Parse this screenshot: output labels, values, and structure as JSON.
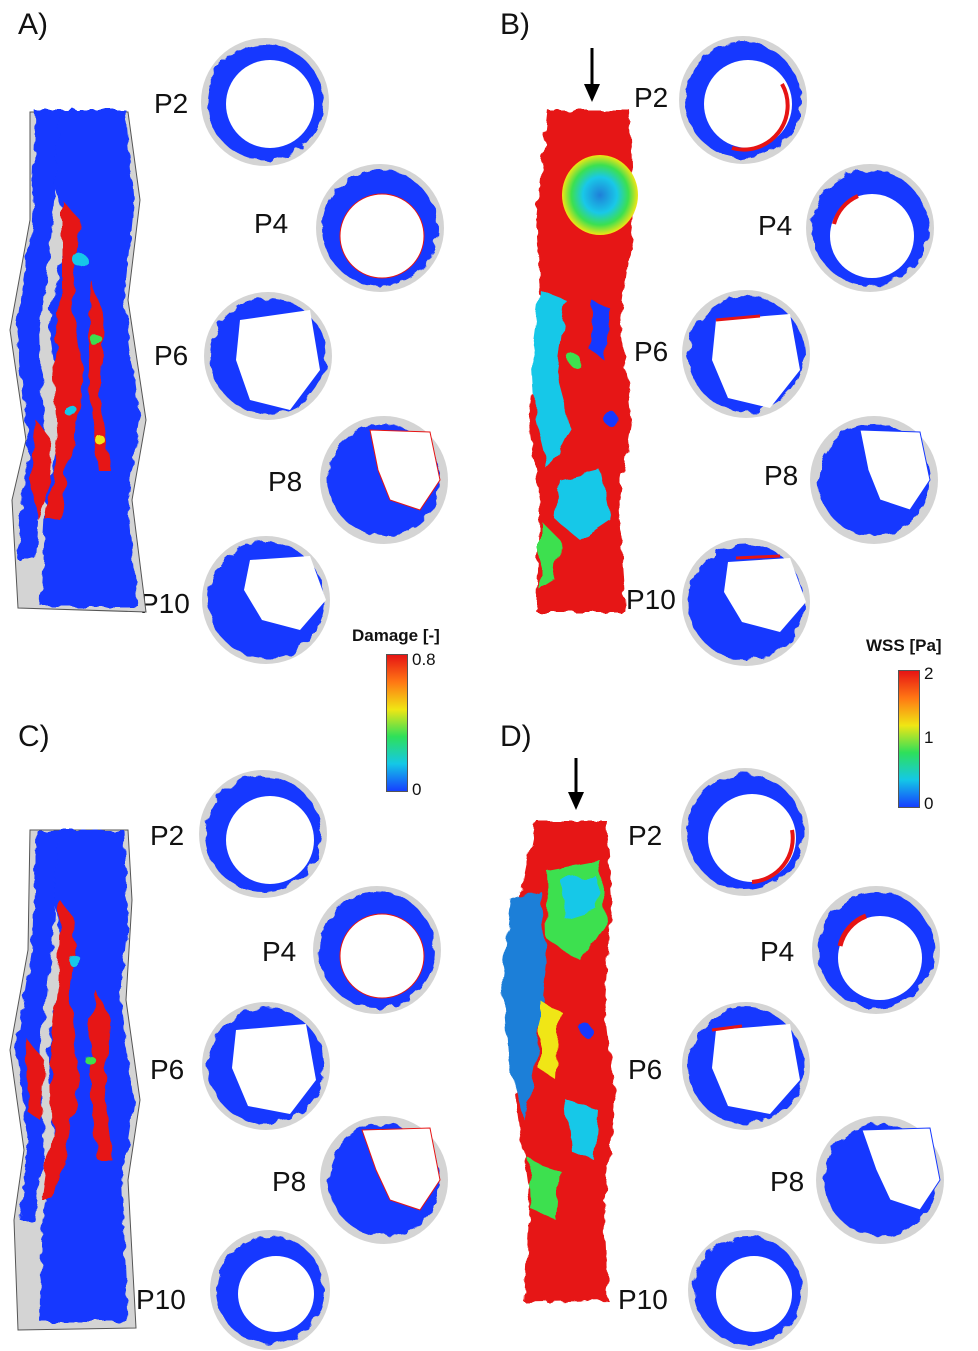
{
  "panels": [
    {
      "label": "A)",
      "sections": [
        "P2",
        "P4",
        "P6",
        "P8",
        "P10"
      ]
    },
    {
      "label": "B)",
      "sections": [
        "P2",
        "P4",
        "P6",
        "P8",
        "P10"
      ]
    },
    {
      "label": "C)",
      "sections": [
        "P2",
        "P4",
        "P6",
        "P8",
        "P10"
      ]
    },
    {
      "label": "D)",
      "sections": [
        "P2",
        "P4",
        "P6",
        "P8",
        "P10"
      ]
    }
  ],
  "colorbars": [
    {
      "title": "Damage [-]",
      "max": "0.8",
      "min": "0",
      "colors": [
        "#1640ff",
        "#14c8e6",
        "#2ee05a",
        "#f0e614",
        "#ff7814",
        "#e61414"
      ]
    },
    {
      "title": "WSS [Pa]",
      "max": "2",
      "mid": "1",
      "min": "0",
      "colors": [
        "#1640ff",
        "#14c8e6",
        "#2ee05a",
        "#f0e614",
        "#ff7814",
        "#e61414"
      ]
    }
  ],
  "colors": {
    "vessel_blue": "#1638ff",
    "damage_red": "#e61414",
    "wall_gray": "#d4d4d4",
    "cyan": "#19c8e8",
    "green": "#3ce050",
    "yellow": "#f0e614"
  }
}
